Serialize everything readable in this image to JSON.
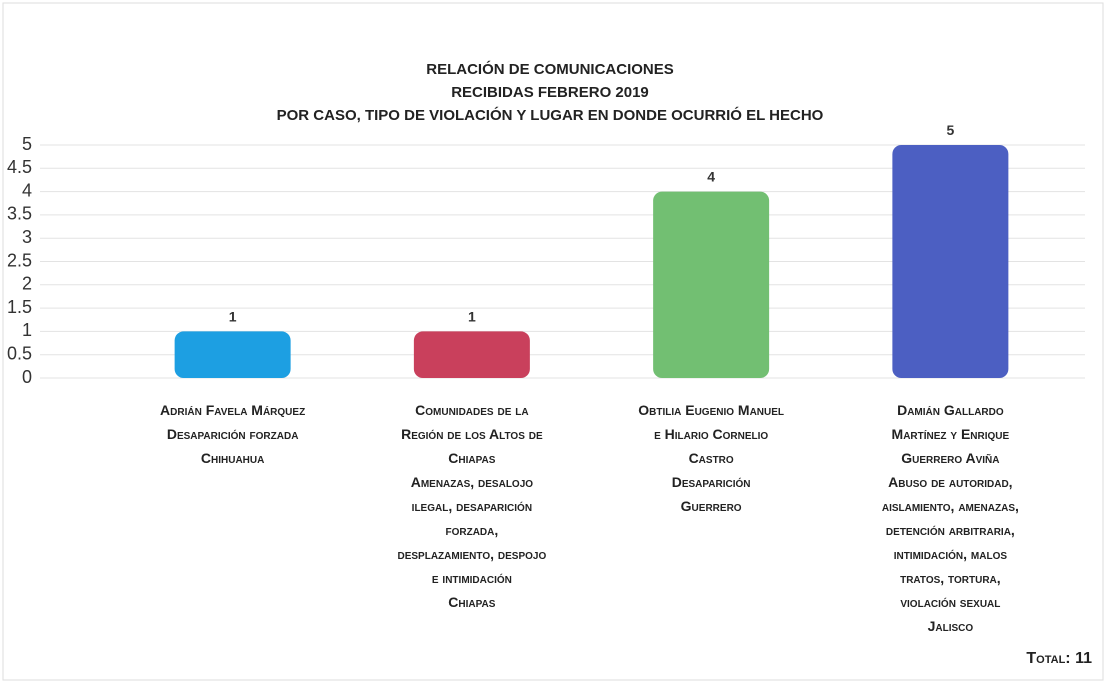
{
  "chart_data": {
    "type": "bar",
    "title": "RELACIÓN DE COMUNICACIONES\nRECIBIDAS FEBRERO 2019\nPOR CASO, TIPO DE VIOLACIÓN Y LUGAR EN DONDE OCURRIÓ EL HECHO",
    "categories": [
      "Adrián Favela Márquez\nDesaparición forzada\nChihuahua",
      "Comunidades de la\nRegión de los Altos de\nChiapas\nAmenazas, desalojo\nilegal, desaparición\nforzada,\ndesplazamiento, despojo\ne intimidación\nChiapas",
      "Obtilia Eugenio Manuel\ne Hilario Cornelio\nCastro\nDesaparición\nGuerrero",
      "Damián Gallardo\nMartínez y Enrique\nGuerrero Aviña\nAbuso de autoridad,\naislamiento, amenazas,\ndetención arbitraria,\nintimidación, malos\ntratos, tortura,\nviolación sexual\nJalisco"
    ],
    "values": [
      1,
      1,
      4,
      5
    ],
    "colors": [
      "#1d9fe2",
      "#c9405c",
      "#72bf72",
      "#4c5fc2"
    ],
    "ylim": [
      0,
      5
    ],
    "yticks": [
      0,
      0.5,
      1,
      1.5,
      2,
      2.5,
      3,
      3.5,
      4,
      4.5,
      5
    ],
    "grid": true,
    "total_label": "Total:",
    "total": 11
  }
}
